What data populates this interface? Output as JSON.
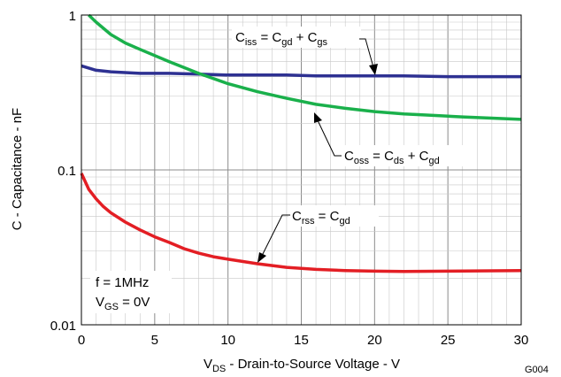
{
  "chart_data": {
    "type": "line",
    "scale_y": "log",
    "xlim": [
      0,
      30
    ],
    "ylim": [
      0.01,
      1
    ],
    "grid": true,
    "xlabel": {
      "main": "V",
      "sub": "DS",
      "rest": " - Drain-to-Source Voltage - V"
    },
    "ylabel": "C - Capacitance - nF",
    "x_ticks": [
      "0",
      "5",
      "10",
      "15",
      "20",
      "25",
      "30"
    ],
    "y_ticks": [
      "0.01",
      "0.1",
      "1"
    ],
    "figure_id": "G004",
    "conditions": {
      "line1": "f = 1MHz",
      "line2": {
        "main": "V",
        "sub": "GS",
        "rest": " = 0V"
      }
    },
    "series": [
      {
        "key": "ciss",
        "color": "#2e3192",
        "x": [
          0,
          1,
          2,
          4,
          6,
          8,
          10,
          12,
          14,
          16,
          18,
          20,
          22,
          25,
          28,
          30
        ],
        "y": [
          0.47,
          0.44,
          0.43,
          0.42,
          0.42,
          0.415,
          0.41,
          0.41,
          0.41,
          0.405,
          0.405,
          0.405,
          0.405,
          0.4,
          0.4,
          0.4
        ],
        "label": {
          "c": "C",
          "csub": "iss",
          "eq": " = C",
          "t1": "gd",
          "plus": " + C",
          "t2": "gs"
        }
      },
      {
        "key": "coss",
        "color": "#1ab04b",
        "x": [
          0.5,
          1,
          2,
          3,
          4,
          6,
          8,
          10,
          12,
          14,
          16,
          18,
          20,
          22,
          24,
          26,
          28,
          30
        ],
        "y": [
          1.0,
          0.9,
          0.75,
          0.66,
          0.6,
          0.5,
          0.42,
          0.36,
          0.32,
          0.29,
          0.265,
          0.25,
          0.238,
          0.23,
          0.225,
          0.22,
          0.216,
          0.212
        ],
        "label": {
          "c": "C",
          "csub": "oss",
          "eq": " = C",
          "t1": "ds",
          "plus": " + C",
          "t2": "gd"
        }
      },
      {
        "key": "crss",
        "color": "#e31e24",
        "x": [
          0,
          0.5,
          1,
          1.5,
          2,
          3,
          4,
          5,
          6,
          7,
          8,
          9,
          10,
          12,
          14,
          16,
          18,
          20,
          22,
          25,
          28,
          30
        ],
        "y": [
          0.095,
          0.075,
          0.065,
          0.058,
          0.053,
          0.046,
          0.041,
          0.037,
          0.034,
          0.031,
          0.029,
          0.0275,
          0.0265,
          0.0248,
          0.0235,
          0.0228,
          0.0224,
          0.0222,
          0.0221,
          0.0222,
          0.0223,
          0.0224
        ],
        "label": {
          "c": "C",
          "csub": "rss",
          "eq": " = C",
          "t1": "gd",
          "plus": "",
          "t2": ""
        }
      }
    ]
  }
}
